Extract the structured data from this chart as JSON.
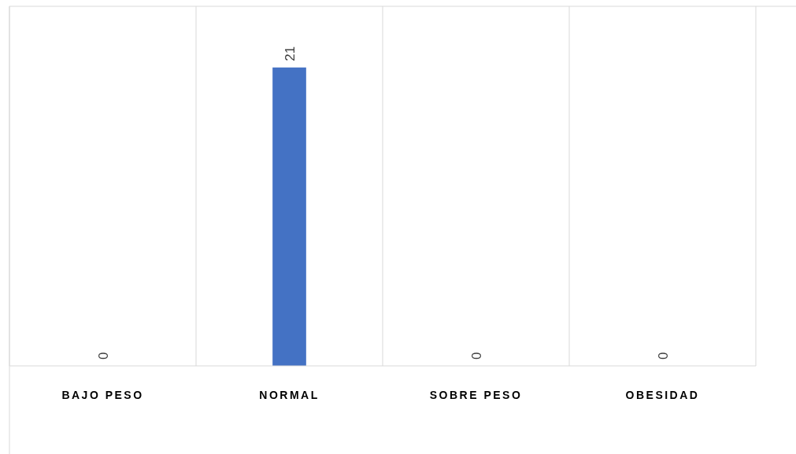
{
  "chart_data": {
    "type": "bar",
    "categories": [
      "BAJO PESO",
      "NORMAL",
      "SOBRE PESO",
      "OBESIDAD"
    ],
    "values": [
      0,
      21,
      0,
      0
    ],
    "color": "#4472c4",
    "data_labels": true,
    "grid": "x"
  }
}
